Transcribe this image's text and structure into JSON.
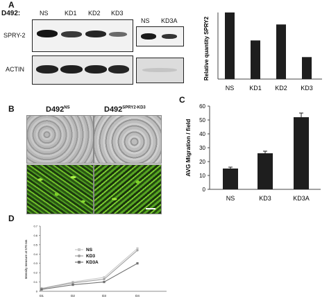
{
  "panels": {
    "a": "A",
    "b": "B",
    "c": "C",
    "d": "D"
  },
  "blot": {
    "cell_line": "D492:",
    "lanes_left": [
      "NS",
      "KD1",
      "KD2",
      "KD3"
    ],
    "lanes_right": [
      "NS",
      "KD3A"
    ],
    "rows": [
      "SPRY-2",
      "ACTIN"
    ]
  },
  "micro": {
    "title_ns_base": "D492",
    "title_ns_sup": "NS",
    "title_kd_base": "D492",
    "title_kd_sup": "SPRY2-KD3"
  },
  "colors": {
    "bar": "#1e1e1e",
    "line_ns": "#c8c8c8",
    "line_kd3": "#a0a0a0",
    "line_kd3a": "#707070"
  },
  "chart_data": [
    {
      "type": "bar",
      "categories": [
        "NS",
        "KD1",
        "KD2",
        "KD3"
      ],
      "values": [
        1.0,
        0.58,
        0.82,
        0.33
      ],
      "ylabel": "Relative quantity SPRY2",
      "ylim": [
        0,
        1.0
      ]
    },
    {
      "type": "bar",
      "categories": [
        "NS",
        "KD3",
        "KD3A"
      ],
      "values": [
        15,
        26,
        52
      ],
      "errors": [
        1,
        1.5,
        3
      ],
      "ylabel": "AVG Migration / field",
      "ylim": [
        0,
        60
      ],
      "yticks": [
        "0",
        "10",
        "20",
        "30",
        "40",
        "50",
        "60"
      ]
    },
    {
      "type": "line",
      "x": [
        "D1",
        "D2",
        "D3",
        "D4"
      ],
      "series": [
        {
          "name": "NS",
          "values": [
            0.03,
            0.1,
            0.15,
            0.46
          ]
        },
        {
          "name": "KD3",
          "values": [
            0.03,
            0.09,
            0.13,
            0.44
          ]
        },
        {
          "name": "KD3A",
          "values": [
            0.02,
            0.07,
            0.1,
            0.3
          ]
        }
      ],
      "ylabel": "Intensity measure at 570 nm",
      "ylim": [
        0,
        0.7
      ],
      "yticks": [
        "0",
        "0.1",
        "0.2",
        "0.3",
        "0.4",
        "0.5",
        "0.6",
        "0.7"
      ]
    }
  ]
}
